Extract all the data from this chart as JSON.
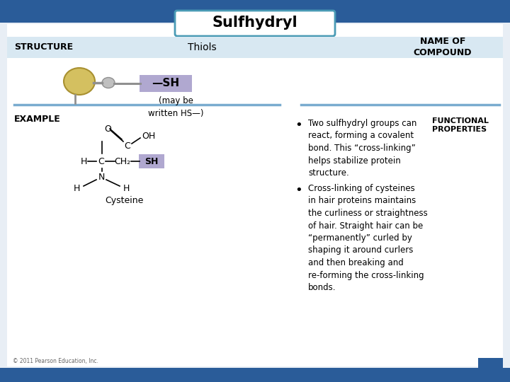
{
  "title": "Sulfhydryl",
  "bg_color": "#e8eef5",
  "header_bar_color": "#2a5c99",
  "title_box_color": "#4a9bb5",
  "structure_label": "STRUCTURE",
  "thiols_label": "Thiols",
  "name_of_compound": "NAME OF\nCOMPOUND",
  "may_be_written": "(may be\nwritten HS—)",
  "example_label": "EXAMPLE",
  "compound_name": "Cysteine",
  "functional_label": "FUNCTIONAL\nPROPERTIES",
  "bullet1": "Two sulfhydryl groups can\nreact, forming a covalent\nbond. This “cross-linking”\nhelps stabilize protein\nstructure.",
  "bullet2": "Cross-linking of cysteines\nin hair proteins maintains\nthe curliness or straightness\nof hair. Straight hair can be\n“permanently” curled by\nshaping it around curlers\nand then breaking and\nre-forming the cross-linking\nbonds.",
  "highlight_color": "#b0a8d0",
  "separator_color": "#7aaccf",
  "title_fontsize": 15,
  "label_fontsize": 9,
  "body_fontsize": 8.5,
  "copyright": "© 2011 Pearson Education, Inc."
}
